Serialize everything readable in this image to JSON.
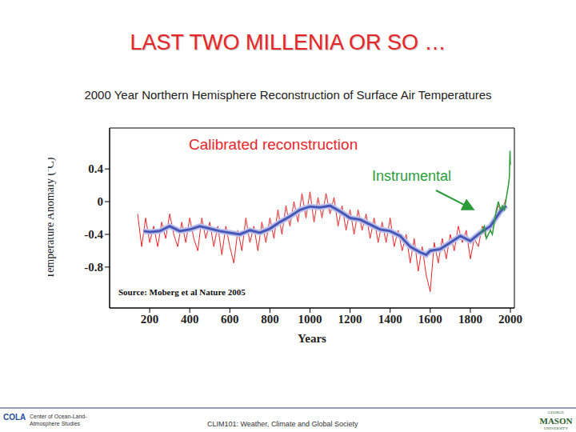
{
  "slide": {
    "title": "LAST TWO MILLENIA OR SO …",
    "footer_left": [
      "Center of Ocean-Land-",
      "Atmosphere Studies"
    ],
    "footer_left_logo": "COLA",
    "footer_center": "CLIM101: Weather, Climate and Global Society",
    "footer_right_logo": [
      "GEORGE",
      "MASON",
      "UNIVERSITY"
    ]
  },
  "chart_data": {
    "type": "line",
    "title": "2000 Year Northern Hemisphere Reconstruction of Surface Air Temperatures",
    "x_label": "Years",
    "y_label": "Temperature Anomaly (ºC)",
    "annotations": [
      {
        "text": "Calibrated reconstruction",
        "color": "#e8262a"
      },
      {
        "text": "Instrumental",
        "color": "#2a9d3a"
      },
      {
        "text": "Source: Moberg et al Nature 2005",
        "color": "#111111"
      }
    ],
    "xlim": [
      0,
      2020
    ],
    "xticks": [
      200,
      400,
      600,
      800,
      1000,
      1200,
      1400,
      1600,
      1800,
      2000
    ],
    "ylim": [
      -1.3,
      0.9
    ],
    "yticks": [
      -0.8,
      -0.4,
      0,
      0.4
    ],
    "grid": false,
    "series": [
      {
        "color": "#e8262a",
        "x": [
          140,
          160,
          180,
          200,
          220,
          240,
          260,
          280,
          300,
          320,
          340,
          360,
          380,
          400,
          420,
          440,
          460,
          480,
          500,
          520,
          540,
          560,
          580,
          600,
          620,
          640,
          660,
          680,
          700,
          720,
          740,
          760,
          780,
          800,
          820,
          840,
          860,
          880,
          900,
          920,
          940,
          960,
          980,
          1000,
          1020,
          1040,
          1060,
          1080,
          1100,
          1120,
          1140,
          1160,
          1180,
          1200,
          1220,
          1240,
          1260,
          1280,
          1300,
          1320,
          1340,
          1360,
          1380,
          1400,
          1420,
          1440,
          1460,
          1480,
          1500,
          1520,
          1540,
          1560,
          1580,
          1600,
          1620,
          1640,
          1660,
          1680,
          1700,
          1720,
          1740,
          1760,
          1780,
          1800,
          1820,
          1840,
          1860,
          1880,
          1900,
          1920,
          1940,
          1960,
          1980
        ],
        "values": [
          -0.15,
          -0.55,
          -0.2,
          -0.5,
          -0.3,
          -0.55,
          -0.25,
          -0.45,
          -0.15,
          -0.4,
          -0.55,
          -0.25,
          -0.5,
          -0.2,
          -0.45,
          -0.6,
          -0.2,
          -0.45,
          -0.25,
          -0.55,
          -0.3,
          -0.65,
          -0.3,
          -0.55,
          -0.75,
          -0.35,
          -0.6,
          -0.2,
          -0.5,
          -0.3,
          -0.6,
          -0.25,
          -0.5,
          -0.2,
          -0.45,
          -0.1,
          -0.4,
          -0.05,
          -0.3,
          0.0,
          -0.25,
          0.1,
          -0.2,
          0.12,
          -0.25,
          0.05,
          -0.2,
          0.1,
          -0.15,
          0.05,
          -0.3,
          -0.05,
          -0.35,
          -0.1,
          -0.4,
          -0.1,
          -0.35,
          -0.15,
          -0.45,
          -0.2,
          -0.5,
          -0.25,
          -0.5,
          -0.2,
          -0.55,
          -0.35,
          -0.6,
          -0.4,
          -0.75,
          -0.45,
          -0.85,
          -0.55,
          -0.9,
          -1.1,
          -0.5,
          -0.75,
          -0.45,
          -0.7,
          -0.4,
          -0.6,
          -0.3,
          -0.5,
          -0.35,
          -0.7,
          -0.45,
          -0.55,
          -0.3,
          -0.45,
          -0.35,
          -0.2,
          -0.05,
          -0.1,
          0.05
        ]
      },
      {
        "color": "#4a56b5",
        "x": [
          170,
          200,
          250,
          300,
          350,
          400,
          450,
          500,
          550,
          600,
          650,
          700,
          750,
          800,
          850,
          900,
          950,
          1000,
          1050,
          1100,
          1150,
          1200,
          1250,
          1300,
          1350,
          1400,
          1450,
          1500,
          1550,
          1580,
          1600,
          1650,
          1700,
          1750,
          1800,
          1850,
          1900,
          1950,
          1979
        ],
        "values": [
          -0.36,
          -0.37,
          -0.36,
          -0.3,
          -0.36,
          -0.34,
          -0.3,
          -0.33,
          -0.36,
          -0.38,
          -0.4,
          -0.35,
          -0.38,
          -0.33,
          -0.25,
          -0.18,
          -0.1,
          -0.06,
          -0.07,
          -0.05,
          -0.12,
          -0.2,
          -0.22,
          -0.28,
          -0.34,
          -0.36,
          -0.42,
          -0.55,
          -0.62,
          -0.65,
          -0.6,
          -0.58,
          -0.5,
          -0.42,
          -0.48,
          -0.38,
          -0.3,
          -0.12,
          -0.05
        ]
      },
      {
        "color": "#2a9d3a",
        "x": [
          1850,
          1860,
          1870,
          1880,
          1890,
          1900,
          1910,
          1920,
          1930,
          1940,
          1950,
          1960,
          1970,
          1980,
          1990,
          1995,
          1998,
          2000
        ],
        "values": [
          -0.4,
          -0.35,
          -0.3,
          -0.45,
          -0.4,
          -0.35,
          -0.4,
          -0.25,
          -0.1,
          0.0,
          -0.1,
          -0.05,
          -0.1,
          0.05,
          0.2,
          0.3,
          0.62,
          0.45
        ]
      }
    ]
  }
}
